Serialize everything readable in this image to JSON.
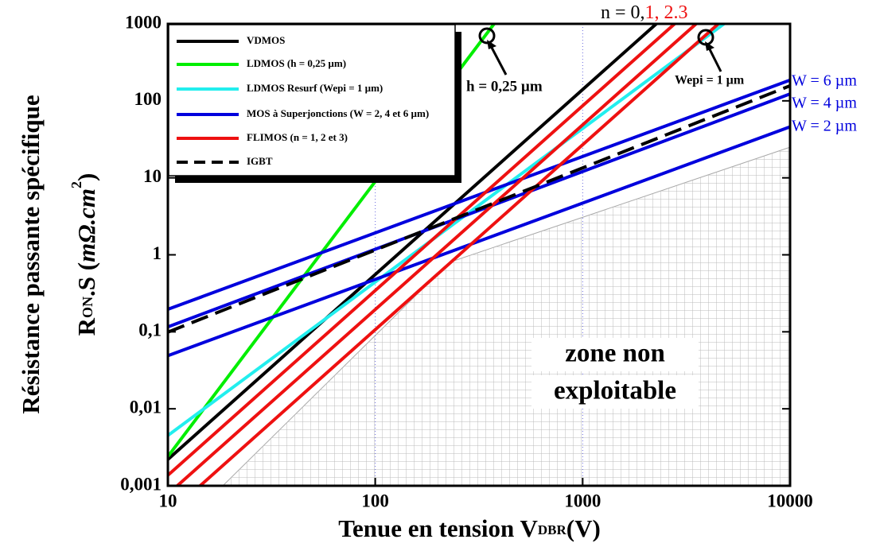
{
  "chart_data": {
    "type": "line",
    "log_x": true,
    "log_y": true,
    "xlabel": {
      "main": "Tenue en tension V",
      "sub": "DBR",
      "end": "(V)"
    },
    "ylabel": {
      "line1": "Résistance passante spécifique",
      "r": "R",
      "sub": "ON",
      "mid": ".S (",
      "unit": "mΩ.cm",
      "sup": "2",
      "end": ")"
    },
    "xlim": [
      10,
      10000
    ],
    "xticks": [
      10,
      100,
      1000,
      10000
    ],
    "ylim": [
      0.001,
      1000
    ],
    "yticks": [
      {
        "value": 0.001,
        "label": "0,001"
      },
      {
        "value": 0.01,
        "label": "0,01"
      },
      {
        "value": 0.1,
        "label": "0,1"
      },
      1,
      10,
      100,
      1000
    ],
    "xgrid": true,
    "series": [
      {
        "name": "VDMOS",
        "color": "#000000",
        "dash": false,
        "lines": [
          {
            "x": [
              10,
              2265
            ],
            "values": [
              0.0022,
              1000
            ]
          }
        ]
      },
      {
        "name": "LDMOS (h = 0,25 µm)",
        "color": "#00ee00",
        "dash": false,
        "lines": [
          {
            "x": [
              10,
              374
            ],
            "values": [
              0.0024,
              1000
            ]
          }
        ]
      },
      {
        "name": "LDMOS Resurf (Wepi = 1 µm)",
        "color": "#22eeee",
        "dash": false,
        "lines": [
          {
            "x": [
              10,
              4800
            ],
            "values": [
              0.0045,
              1000
            ]
          }
        ]
      },
      {
        "name": "MOS à Superjonctions (W = 2, 4 et 6 µm)",
        "color": "#0000dd",
        "dash": false,
        "lines": [
          {
            "x": [
              10,
              10000
            ],
            "values": [
              0.049,
              46
            ]
          },
          {
            "x": [
              10,
              10000
            ],
            "values": [
              0.116,
              123
            ]
          },
          {
            "x": [
              10,
              10000
            ],
            "values": [
              0.196,
              186
            ]
          }
        ]
      },
      {
        "name": "FLIMOS (n = 1, 2 et 3)",
        "color": "#ee1111",
        "dash": false,
        "lines": [
          {
            "x": [
              10,
              2775
            ],
            "values": [
              0.00137,
              1000
            ]
          },
          {
            "x": [
              11.1,
              3524
            ],
            "values": [
              0.001,
              1000
            ]
          },
          {
            "x": [
              14.3,
              4508
            ],
            "values": [
              0.001,
              1000
            ]
          }
        ]
      },
      {
        "name": "IGBT",
        "color": "#000000",
        "dash": true,
        "lines": [
          {
            "x": [
              10,
              10000
            ],
            "values": [
              0.099,
              157
            ]
          }
        ]
      }
    ],
    "region": {
      "x": [
        18.4,
        228,
        10000,
        10000
      ],
      "values": [
        0.001,
        0.8,
        25,
        0.001
      ],
      "label": [
        "zone non",
        "exploitable"
      ]
    },
    "n_label": {
      "black": "n = 0,",
      "red": "1, 2.3"
    },
    "annotations": [
      "h = 0,25 µm",
      "Wepi = 1 µm"
    ],
    "w_labels": [
      {
        "text": "W = 6 µm",
        "color": "#0000dd"
      },
      {
        "text": "W = 4 µm",
        "color": "#0000dd"
      },
      {
        "text": "W = 2 µm",
        "color": "#0000dd"
      }
    ]
  }
}
